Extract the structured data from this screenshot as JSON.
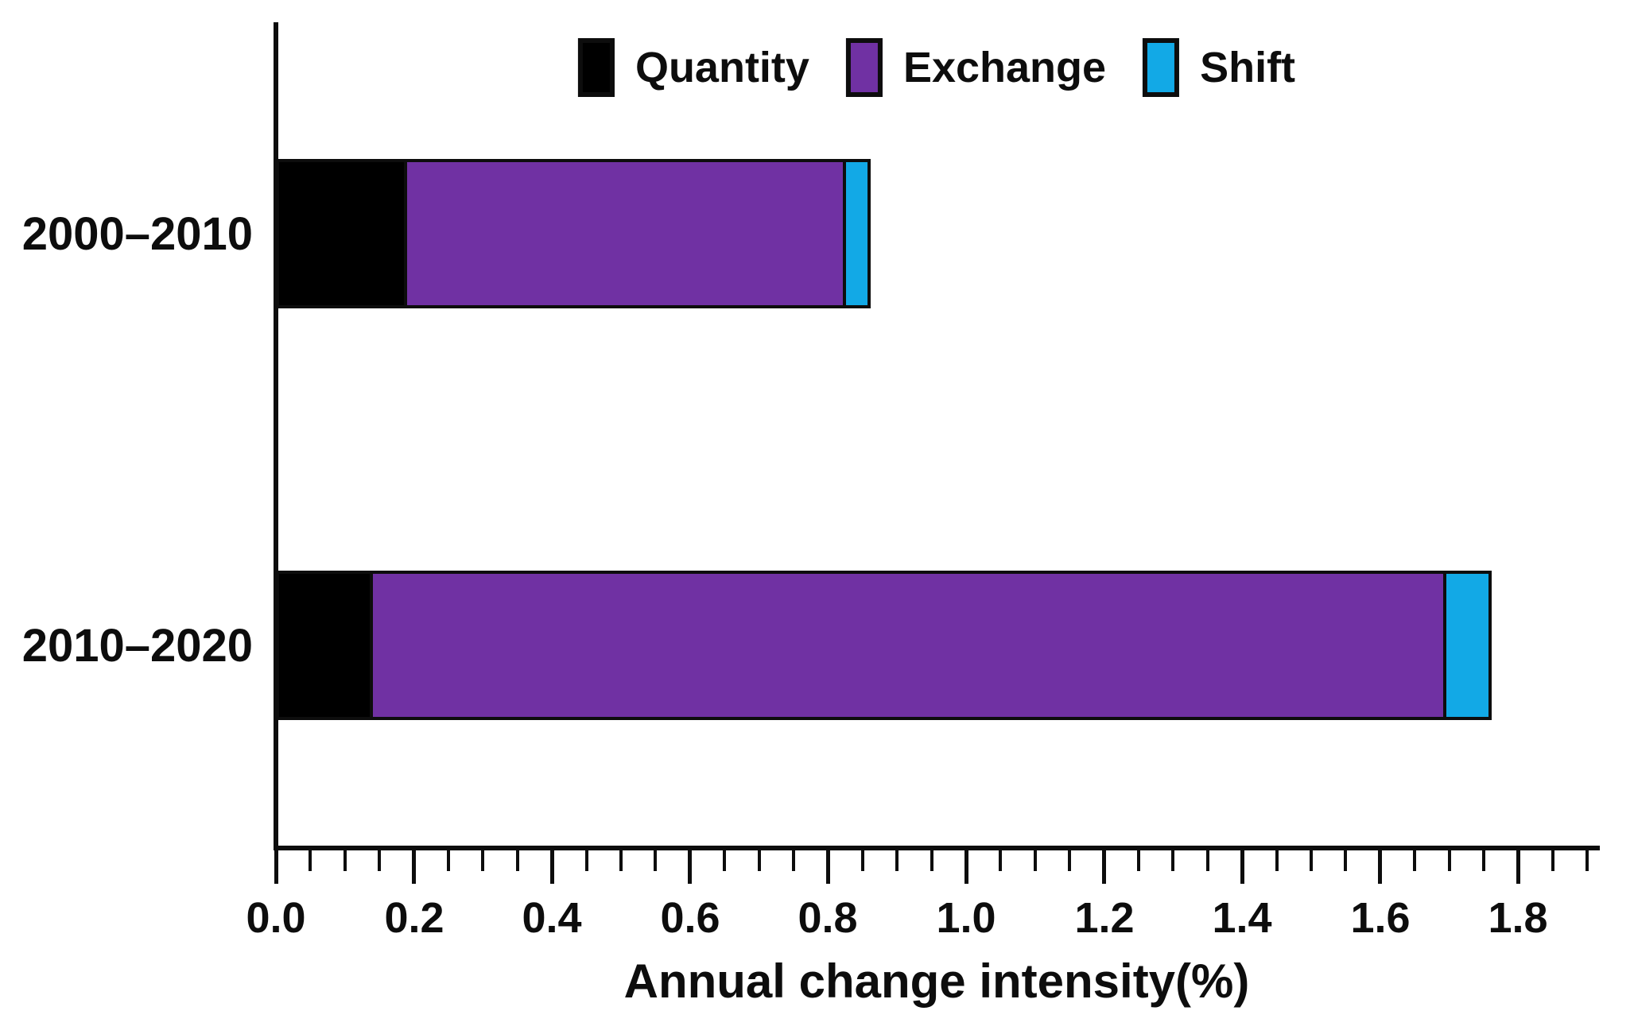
{
  "chart_data": {
    "type": "bar",
    "orientation": "horizontal",
    "stacked": true,
    "title": "",
    "xlabel": "Annual change intensity(%)",
    "ylabel": "",
    "categories": [
      "2000–2010",
      "2010–2020"
    ],
    "series": [
      {
        "name": "Quantity",
        "color": "#000000",
        "values": [
          0.19,
          0.14
        ]
      },
      {
        "name": "Exchange",
        "color": "#7031A3",
        "values": [
          0.64,
          1.56
        ]
      },
      {
        "name": "Shift",
        "color": "#12A9E6",
        "values": [
          0.04,
          0.07
        ]
      }
    ],
    "stack_totals": [
      0.87,
      1.77
    ],
    "xlim": [
      0.0,
      1.92
    ],
    "x_tick_labels": [
      "0.0",
      "0.2",
      "0.4",
      "0.6",
      "0.8",
      "1.0",
      "1.2",
      "1.4",
      "1.6",
      "1.8"
    ],
    "x_tick_values": [
      0.0,
      0.2,
      0.4,
      0.6,
      0.8,
      1.0,
      1.2,
      1.4,
      1.6,
      1.8
    ],
    "minor_tick_step": 0.05,
    "grid": false,
    "legend_position": "top-center",
    "bar_edge_color": "#000000",
    "axis_color": "#000000",
    "background_color": "#FFFFFF"
  }
}
